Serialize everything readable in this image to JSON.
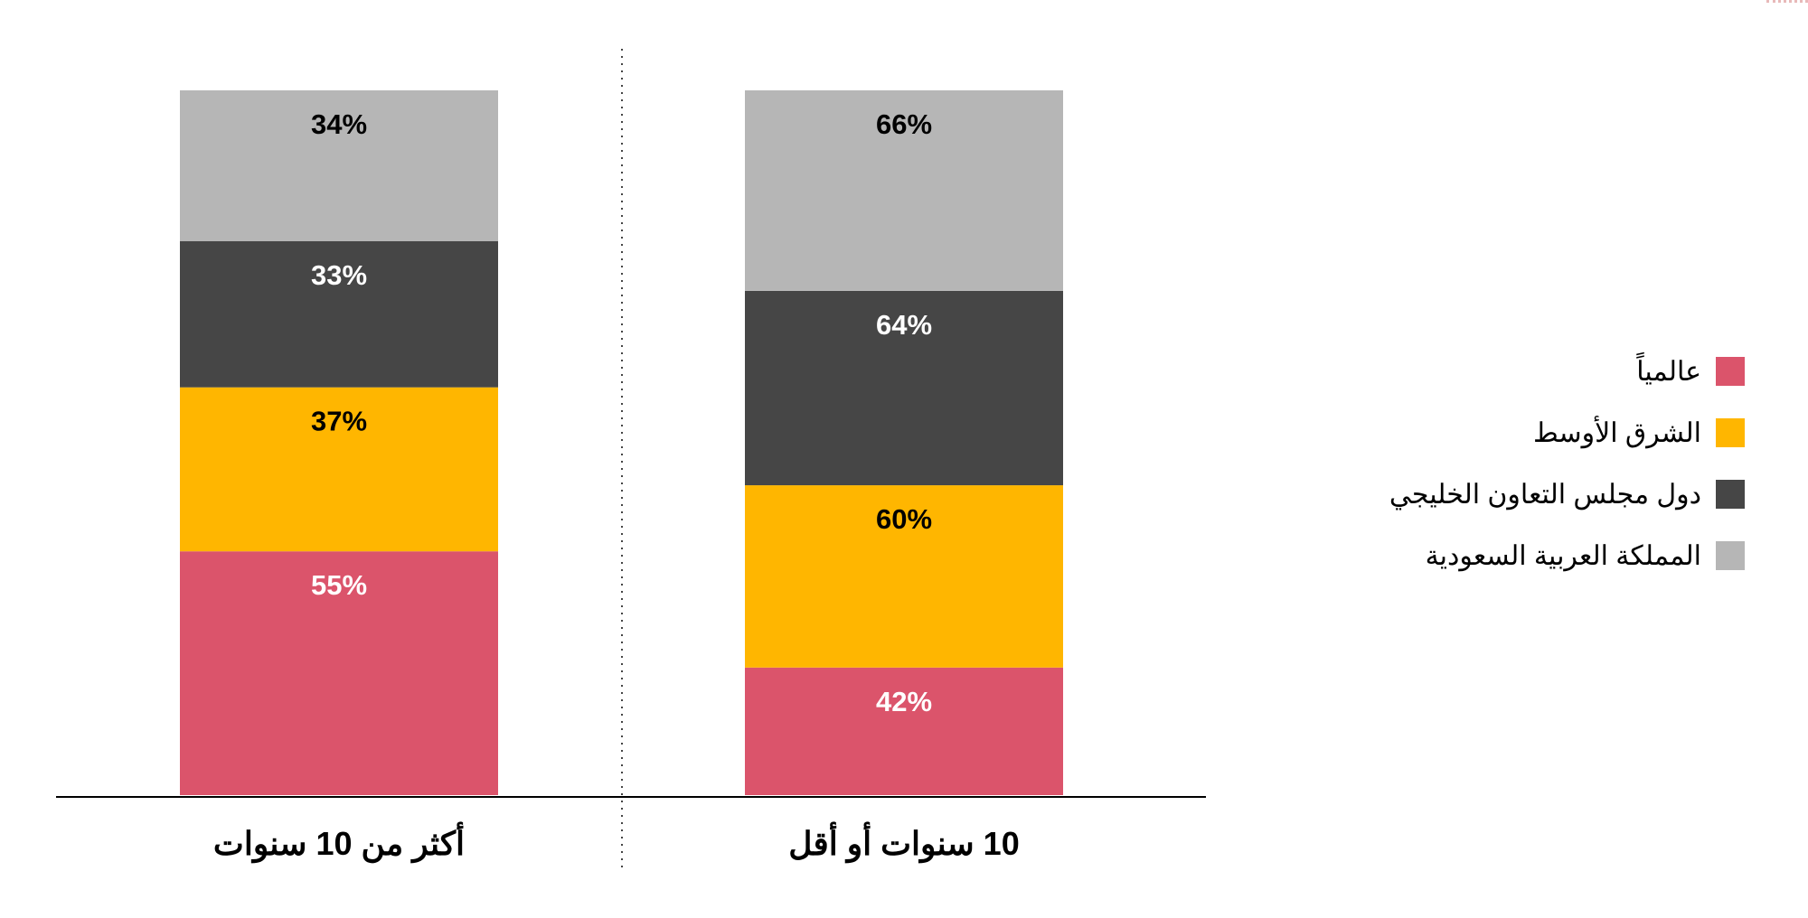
{
  "chart_data": {
    "type": "bar",
    "stacked": true,
    "categories": [
      "أكثر من 10 سنوات",
      "10 سنوات أو أقل"
    ],
    "series": [
      {
        "name": "عالمياً",
        "color": "#db546b",
        "values": [
          55,
          42
        ],
        "labels": [
          "55%",
          "42%"
        ],
        "label_color": "#ffffff"
      },
      {
        "name": "الشرق الأوسط",
        "color": "#ffb600",
        "values": [
          37,
          60
        ],
        "labels": [
          "37%",
          "60%"
        ],
        "label_color": "#000000"
      },
      {
        "name": "دول مجلس التعاون الخليجي",
        "color": "#464646",
        "values": [
          33,
          64
        ],
        "labels": [
          "33%",
          "64%"
        ],
        "label_color": "#ffffff"
      },
      {
        "name": "المملكة العربية السعودية",
        "color": "#b6b6b6",
        "values": [
          34,
          66
        ],
        "labels": [
          "34%",
          "66%"
        ],
        "label_color": "#000000"
      }
    ],
    "legend_position": "right",
    "grid": false
  },
  "legend": {
    "items": [
      {
        "label": "عالمياً",
        "color": "#db546b"
      },
      {
        "label": "الشرق الأوسط",
        "color": "#ffb600"
      },
      {
        "label": "دول مجلس التعاون الخليجي",
        "color": "#464646"
      },
      {
        "label": "المملكة العربية السعودية",
        "color": "#b6b6b6"
      }
    ]
  }
}
